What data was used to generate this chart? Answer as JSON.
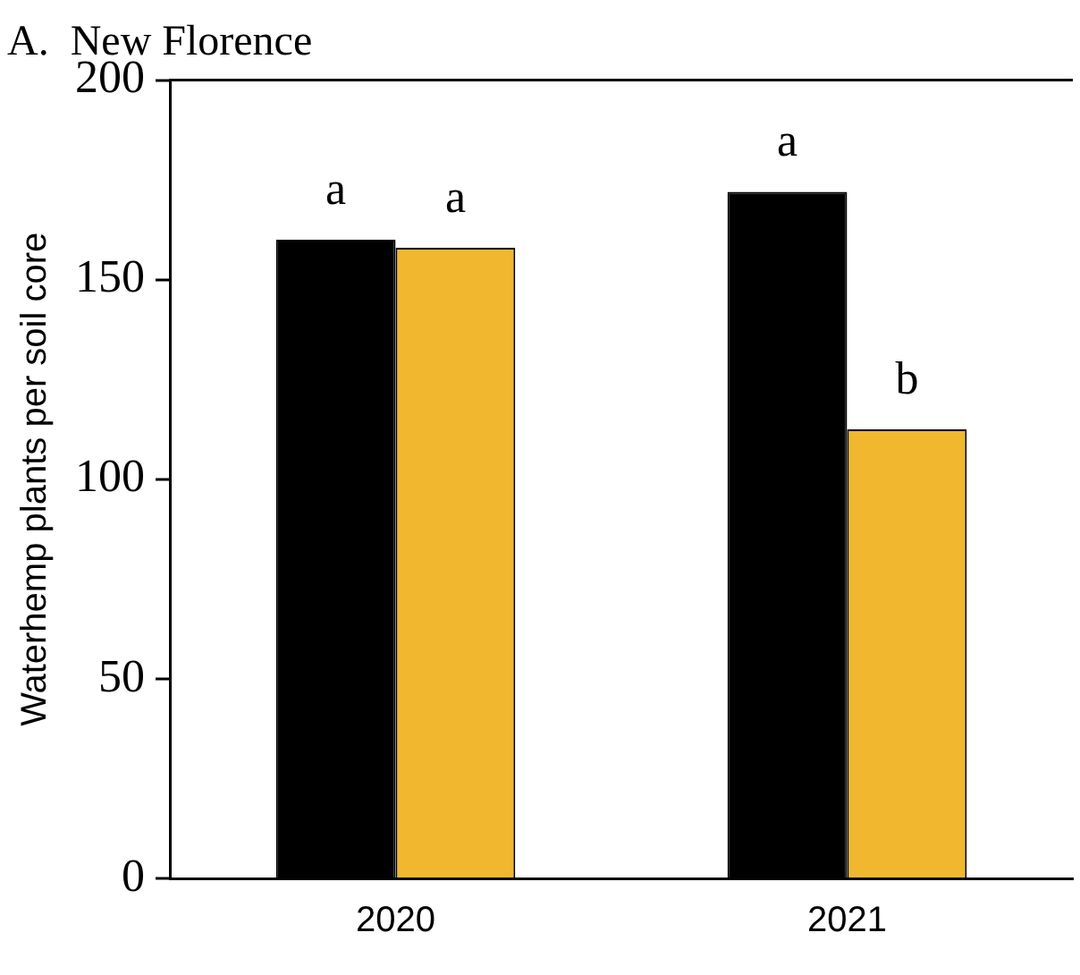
{
  "chart_data": {
    "type": "bar",
    "title": "A.  New Florence",
    "ylabel": "Waterhemp plants per soil core",
    "categories": [
      "2020",
      "2021"
    ],
    "series": [
      {
        "color": "#000000",
        "values": [
          160,
          172
        ],
        "value_labels": [
          "a",
          "a"
        ]
      },
      {
        "color": "#f0b72f",
        "values": [
          158,
          112.5
        ],
        "value_labels": [
          "a",
          "b"
        ]
      }
    ],
    "ylim": [
      0,
      200
    ],
    "yticks": [
      0,
      50,
      100,
      150,
      200
    ],
    "grid": false,
    "legend": false
  }
}
